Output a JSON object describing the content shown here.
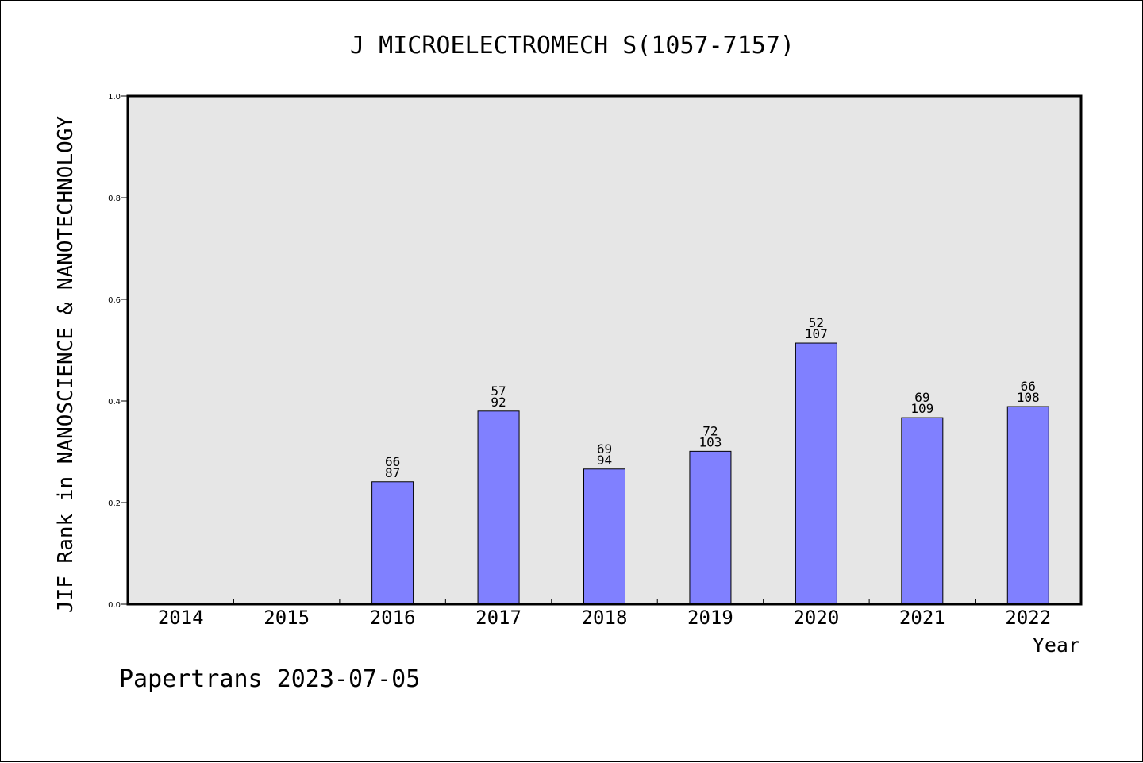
{
  "chart_data": {
    "type": "bar",
    "title": "J MICROELECTROMECH S(1057-7157)",
    "xlabel": "Year",
    "ylabel": "JIF Rank in NANOSCIENCE & NANOTECHNOLOGY",
    "categories": [
      "2014",
      "2015",
      "2016",
      "2017",
      "2018",
      "2019",
      "2020",
      "2021",
      "2022"
    ],
    "values": [
      null,
      null,
      0.241,
      0.38,
      0.266,
      0.301,
      0.514,
      0.367,
      0.389
    ],
    "bar_labels": [
      {
        "top": "",
        "bottom": ""
      },
      {
        "top": "",
        "bottom": ""
      },
      {
        "top": "66",
        "bottom": "87"
      },
      {
        "top": "57",
        "bottom": "92"
      },
      {
        "top": "69",
        "bottom": "94"
      },
      {
        "top": "72",
        "bottom": "103"
      },
      {
        "top": "52",
        "bottom": "107"
      },
      {
        "top": "69",
        "bottom": "109"
      },
      {
        "top": "66",
        "bottom": "108"
      }
    ],
    "yticks": [
      "0.0",
      "0.2",
      "0.4",
      "0.6",
      "0.8",
      "1.0"
    ],
    "ylim": [
      0,
      1.0
    ],
    "grid": false,
    "colors": {
      "bar": "#8080ff",
      "plot_bg": "#e6e6e6"
    }
  },
  "footer": {
    "text": "Papertrans 2023-07-05"
  }
}
